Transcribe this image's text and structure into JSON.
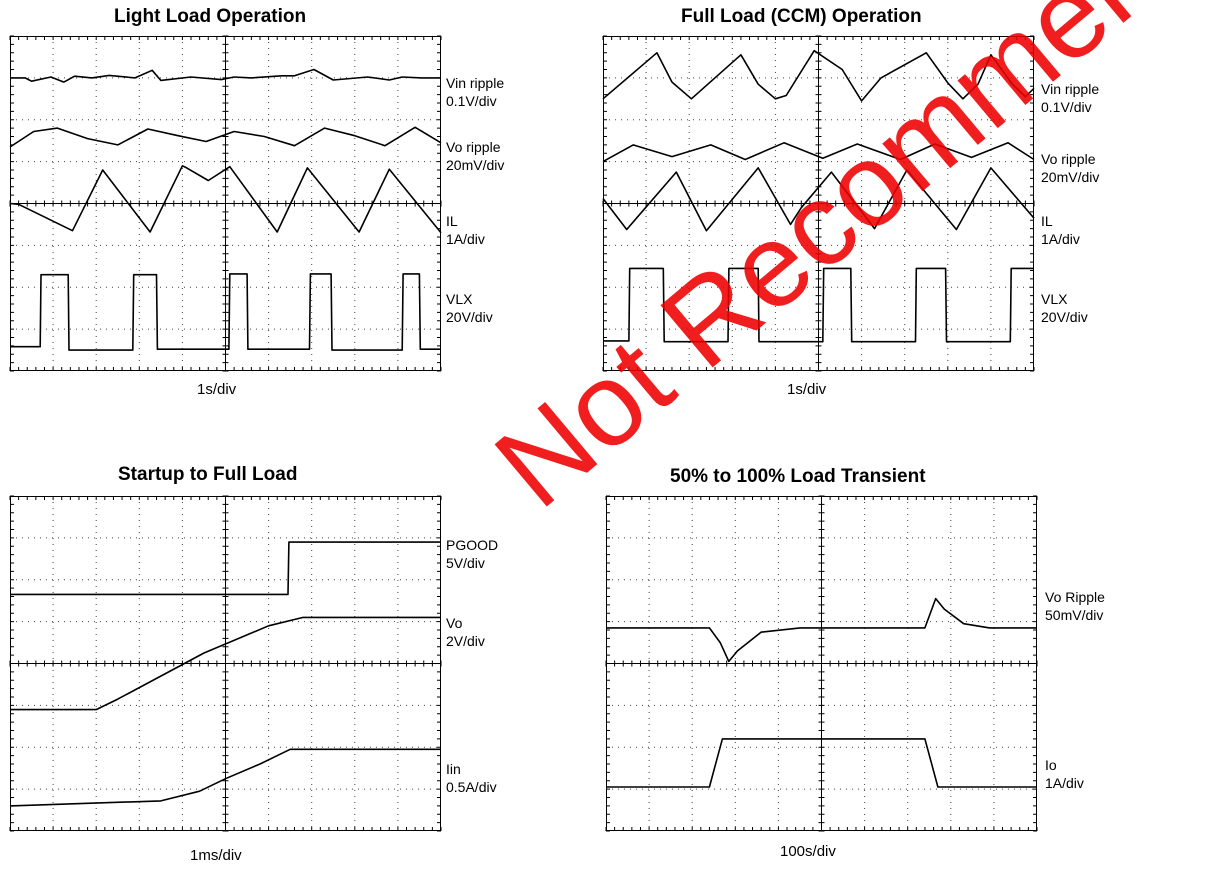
{
  "panels": [
    {
      "title": "Light Load Operation",
      "timebase": "1s/div",
      "channels": [
        {
          "name": "Vin ripple",
          "scale": "0.1V/div"
        },
        {
          "name": "Vo ripple",
          "scale": "20mV/div"
        },
        {
          "name": "IL",
          "scale": "1A/div"
        },
        {
          "name": "VLX",
          "scale": "20V/div"
        }
      ]
    },
    {
      "title": "Full Load (CCM) Operation",
      "timebase": "1s/div",
      "channels": [
        {
          "name": "Vin ripple",
          "scale": "0.1V/div"
        },
        {
          "name": "Vo ripple",
          "scale": "20mV/div"
        },
        {
          "name": "IL",
          "scale": "1A/div"
        },
        {
          "name": "VLX",
          "scale": "20V/div"
        }
      ]
    },
    {
      "title": "Startup to Full Load",
      "timebase": "1ms/div",
      "channels": [
        {
          "name": "PGOOD",
          "scale": "5V/div"
        },
        {
          "name": "Vo",
          "scale": "2V/div"
        },
        {
          "name": "Iin",
          "scale": "0.5A/div"
        }
      ]
    },
    {
      "title": "50% to 100% Load Transient",
      "timebase": "100s/div",
      "channels": [
        {
          "name": "Vo Ripple",
          "scale": "50mV/div"
        },
        {
          "name": "Io",
          "scale": "1A/div"
        }
      ]
    }
  ],
  "watermark": "Not Recommended For New Designs",
  "colors": {
    "trace": "#000000",
    "grid": "#000000",
    "watermark": "#ee0000"
  },
  "chart_data": [
    {
      "type": "line",
      "title": "Light Load Operation",
      "xlabel": "1s/div",
      "xlim": [
        0,
        10
      ],
      "ylim": [
        0,
        8
      ],
      "grid": "10x8 dotted oscilloscope graticule",
      "series": [
        {
          "name": "Vin ripple",
          "x": [
            0,
            0.35,
            0.5,
            0.95,
            1.25,
            1.5,
            1.9,
            2.3,
            2.9,
            3.3,
            3.5,
            4.2,
            4.9,
            5.2,
            5.6,
            6.3,
            6.6,
            7.05,
            7.5,
            8.3,
            8.8,
            9.1,
            9.55,
            10
          ],
          "y": [
            7.0,
            7.0,
            6.92,
            7.02,
            6.9,
            7.04,
            7.0,
            7.06,
            7.0,
            7.18,
            6.94,
            7.02,
            6.96,
            7.02,
            7.0,
            7.05,
            7.05,
            7.2,
            6.95,
            7.02,
            6.95,
            7.02,
            7.0,
            7.0
          ]
        },
        {
          "name": "Vo ripple",
          "x": [
            0,
            0.55,
            1.1,
            1.8,
            2.5,
            3.2,
            3.9,
            4.55,
            5.2,
            5.9,
            6.6,
            7.3,
            8.0,
            8.7,
            9.4,
            10
          ],
          "y": [
            5.35,
            5.72,
            5.8,
            5.55,
            5.4,
            5.78,
            5.62,
            5.48,
            5.72,
            5.6,
            5.38,
            5.8,
            5.62,
            5.38,
            5.82,
            5.45
          ]
        },
        {
          "name": "IL",
          "x": [
            0,
            0.2,
            1.45,
            2.15,
            3.25,
            4.0,
            4.1,
            4.6,
            5.1,
            6.2,
            6.9,
            8.1,
            8.8,
            10
          ],
          "y": [
            4.0,
            3.98,
            3.35,
            4.8,
            3.32,
            4.9,
            4.85,
            4.55,
            4.88,
            3.32,
            4.85,
            3.32,
            4.82,
            3.3
          ]
        },
        {
          "name": "VLX",
          "x": [
            0,
            0.7,
            0.72,
            1.35,
            1.37,
            2.85,
            2.87,
            3.4,
            3.42,
            5.08,
            5.1,
            5.5,
            5.52,
            6.95,
            6.97,
            7.45,
            7.47,
            9.1,
            9.12,
            9.5,
            9.52,
            10
          ],
          "y": [
            0.58,
            0.58,
            2.3,
            2.3,
            0.5,
            0.5,
            2.3,
            2.3,
            0.52,
            0.52,
            2.32,
            2.32,
            0.52,
            0.52,
            2.32,
            2.32,
            0.5,
            0.5,
            2.32,
            2.32,
            0.52,
            0.52
          ]
        }
      ]
    },
    {
      "type": "line",
      "title": "Full Load (CCM) Operation",
      "xlabel": "1s/div",
      "xlim": [
        0,
        10
      ],
      "ylim": [
        0,
        8
      ],
      "grid": "10x8 dotted oscilloscope graticule",
      "series": [
        {
          "name": "Vin ripple",
          "x": [
            0,
            1.25,
            1.6,
            2.05,
            3.2,
            3.6,
            4.0,
            4.25,
            4.9,
            5.55,
            6.0,
            6.45,
            7.5,
            8.0,
            8.35,
            8.7,
            9.0,
            9.5,
            9.8,
            10
          ],
          "y": [
            6.5,
            7.6,
            6.9,
            6.5,
            7.55,
            6.85,
            6.5,
            6.58,
            7.65,
            7.2,
            6.45,
            7.0,
            7.6,
            6.88,
            6.5,
            6.85,
            7.55,
            6.85,
            6.55,
            6.75
          ]
        },
        {
          "name": "Vo ripple",
          "x": [
            0,
            0.7,
            1.6,
            2.5,
            3.3,
            4.2,
            5.1,
            5.9,
            6.9,
            7.7,
            8.55,
            9.4,
            10
          ],
          "y": [
            5.0,
            5.4,
            5.12,
            5.4,
            5.05,
            5.45,
            5.08,
            5.42,
            5.05,
            5.42,
            5.1,
            5.45,
            5.05
          ]
        },
        {
          "name": "IL",
          "x": [
            0,
            0.55,
            1.7,
            2.4,
            3.6,
            4.35,
            4.6,
            5.3,
            6.3,
            7.05,
            8.2,
            9.0,
            10
          ],
          "y": [
            4.12,
            3.38,
            4.75,
            3.35,
            4.85,
            3.5,
            3.9,
            4.75,
            3.4,
            4.8,
            3.38,
            4.85,
            3.65
          ]
        },
        {
          "name": "VLX",
          "x": [
            0,
            0.6,
            0.62,
            1.4,
            1.42,
            2.9,
            2.92,
            3.6,
            3.62,
            5.1,
            5.12,
            5.75,
            5.77,
            7.25,
            7.27,
            7.95,
            7.97,
            9.45,
            9.47,
            10
          ],
          "y": [
            0.72,
            0.72,
            2.45,
            2.45,
            0.7,
            0.7,
            2.45,
            2.45,
            0.7,
            0.7,
            2.45,
            2.45,
            0.7,
            0.7,
            2.45,
            2.45,
            0.7,
            0.7,
            2.45,
            2.45
          ]
        }
      ]
    },
    {
      "type": "line",
      "title": "Startup to Full Load",
      "xlabel": "1ms/div",
      "xlim": [
        0,
        10
      ],
      "ylim": [
        0,
        8
      ],
      "grid": "10x8 dotted oscilloscope graticule",
      "series": [
        {
          "name": "PGOOD",
          "x": [
            0,
            6.45,
            6.47,
            10
          ],
          "y": [
            5.65,
            5.65,
            6.9,
            6.9
          ]
        },
        {
          "name": "Vo",
          "x": [
            0,
            2.0,
            2.5,
            4.5,
            6.0,
            6.8,
            10
          ],
          "y": [
            2.9,
            2.9,
            3.15,
            4.25,
            4.9,
            5.1,
            5.1
          ]
        },
        {
          "name": "Iin",
          "x": [
            0,
            3.5,
            4.4,
            5.0,
            5.8,
            6.5,
            7.0,
            10
          ],
          "y": [
            0.6,
            0.72,
            0.95,
            1.25,
            1.6,
            1.95,
            1.95,
            1.95
          ]
        }
      ]
    },
    {
      "type": "line",
      "title": "50% to 100% Load Transient",
      "xlabel": "100s/div",
      "xlim": [
        0,
        10
      ],
      "ylim": [
        0,
        8
      ],
      "grid": "10x8 dotted oscilloscope graticule",
      "series": [
        {
          "name": "Vo Ripple",
          "x": [
            0,
            2.4,
            2.65,
            2.85,
            3.05,
            3.6,
            4.5,
            6.0,
            7.4,
            7.65,
            7.85,
            8.3,
            8.9,
            10
          ],
          "y": [
            4.85,
            4.85,
            4.5,
            4.05,
            4.3,
            4.75,
            4.85,
            4.85,
            4.85,
            5.55,
            5.3,
            4.95,
            4.85,
            4.85
          ]
        },
        {
          "name": "Io",
          "x": [
            0,
            2.4,
            2.7,
            7.4,
            7.7,
            10
          ],
          "y": [
            1.05,
            1.05,
            2.2,
            2.2,
            1.05,
            1.05
          ]
        }
      ]
    }
  ]
}
